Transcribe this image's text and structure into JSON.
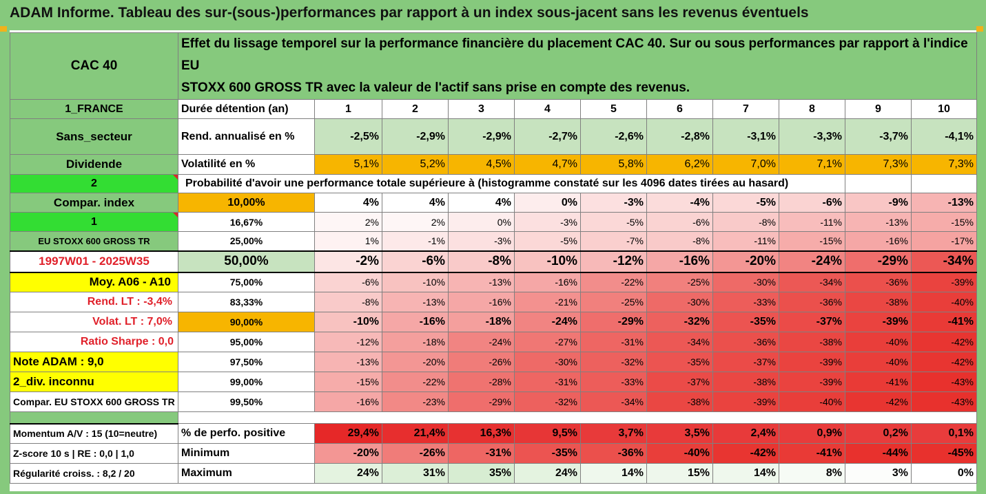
{
  "title": "ADAM Informe. Tableau des sur-(sous-)performances par rapport à un index sous-jacent sans les revenus éventuels",
  "header": {
    "asset": "CAC 40",
    "description_line1": "Effet du lissage temporel sur la performance financière du placement CAC 40. Sur ou sous performances par rapport à l'indice EU",
    "description_line2": "STOXX 600 GROSS TR avec la valeur de l'actif sans prise en compte des revenus."
  },
  "left_labels": {
    "country": "1_FRANCE",
    "sector": "Sans_secteur",
    "dividend": "Dividende",
    "two": "2",
    "compar_index": "Compar. index",
    "one": "1",
    "index_name": "EU STOXX 600 GROSS TR",
    "period": "1997W01 - 2025W35",
    "moy": "Moy. A06 - A10",
    "rend_lt": "Rend. LT :   -3,4%",
    "volat_lt": "Volat. LT :   7,0%",
    "sharpe": "Ratio Sharpe :   0,0",
    "note": "Note ADAM : 9,0",
    "div": "2_div. inconnu",
    "compar_full": "Compar. EU STOXX 600 GROSS TR",
    "momentum": "Momentum A/V : 15 (10=neutre)",
    "zscore": "Z-score 10 s  | RE : 0,0 | 1,0",
    "regularite": "Régularité croiss. : 8,2 / 20"
  },
  "row_labels": {
    "duree": "Durée détention (an)",
    "rend": "Rend. annualisé en %",
    "vol": "Volatilité en %",
    "proba": "Probabilité d'avoir une performance totale supérieure à (histogramme constaté sur les 4096 dates tirées au hasard)",
    "perf_pos": "% de perfo. positive",
    "minimum": "Minimum",
    "maximum": "Maximum"
  },
  "years": [
    "1",
    "2",
    "3",
    "4",
    "5",
    "6",
    "7",
    "8",
    "9",
    "10"
  ],
  "rend": [
    "-2,5%",
    "-2,9%",
    "-2,9%",
    "-2,7%",
    "-2,6%",
    "-2,8%",
    "-3,1%",
    "-3,3%",
    "-3,7%",
    "-4,1%"
  ],
  "vol": [
    "5,1%",
    "5,2%",
    "4,5%",
    "4,7%",
    "5,8%",
    "6,2%",
    "7,0%",
    "7,1%",
    "7,3%",
    "7,3%"
  ],
  "percentiles": [
    {
      "p": "10,00%",
      "values": [
        "4%",
        "4%",
        "4%",
        "0%",
        "-3%",
        "-4%",
        "-5%",
        "-6%",
        "-9%",
        "-13%"
      ]
    },
    {
      "p": "16,67%",
      "values": [
        "2%",
        "2%",
        "0%",
        "-3%",
        "-5%",
        "-6%",
        "-8%",
        "-11%",
        "-13%",
        "-15%"
      ]
    },
    {
      "p": "25,00%",
      "values": [
        "1%",
        "-1%",
        "-3%",
        "-5%",
        "-7%",
        "-8%",
        "-11%",
        "-15%",
        "-16%",
        "-17%"
      ]
    },
    {
      "p": "50,00%",
      "values": [
        "-2%",
        "-6%",
        "-8%",
        "-10%",
        "-12%",
        "-16%",
        "-20%",
        "-24%",
        "-29%",
        "-34%"
      ]
    },
    {
      "p": "75,00%",
      "values": [
        "-6%",
        "-10%",
        "-13%",
        "-16%",
        "-22%",
        "-25%",
        "-30%",
        "-34%",
        "-36%",
        "-39%"
      ]
    },
    {
      "p": "83,33%",
      "values": [
        "-8%",
        "-13%",
        "-16%",
        "-21%",
        "-25%",
        "-30%",
        "-33%",
        "-36%",
        "-38%",
        "-40%"
      ]
    },
    {
      "p": "90,00%",
      "values": [
        "-10%",
        "-16%",
        "-18%",
        "-24%",
        "-29%",
        "-32%",
        "-35%",
        "-37%",
        "-39%",
        "-41%"
      ]
    },
    {
      "p": "95,00%",
      "values": [
        "-12%",
        "-18%",
        "-24%",
        "-27%",
        "-31%",
        "-34%",
        "-36%",
        "-38%",
        "-40%",
        "-42%"
      ]
    },
    {
      "p": "97,50%",
      "values": [
        "-13%",
        "-20%",
        "-26%",
        "-30%",
        "-32%",
        "-35%",
        "-37%",
        "-39%",
        "-40%",
        "-42%"
      ]
    },
    {
      "p": "99,00%",
      "values": [
        "-15%",
        "-22%",
        "-28%",
        "-31%",
        "-33%",
        "-37%",
        "-38%",
        "-39%",
        "-41%",
        "-43%"
      ]
    },
    {
      "p": "99,50%",
      "values": [
        "-16%",
        "-23%",
        "-29%",
        "-32%",
        "-34%",
        "-38%",
        "-39%",
        "-40%",
        "-42%",
        "-43%"
      ]
    }
  ],
  "perf_pos": [
    "29,4%",
    "21,4%",
    "16,3%",
    "9,5%",
    "3,7%",
    "3,5%",
    "2,4%",
    "0,9%",
    "0,2%",
    "0,1%"
  ],
  "minimum": [
    "-20%",
    "-26%",
    "-31%",
    "-35%",
    "-36%",
    "-40%",
    "-42%",
    "-41%",
    "-44%",
    "-45%"
  ],
  "maximum": [
    "24%",
    "31%",
    "35%",
    "24%",
    "14%",
    "15%",
    "14%",
    "8%",
    "3%",
    "0%"
  ],
  "colors": {
    "header_green": "#86c97d",
    "bright_green": "#33dd33",
    "yellow": "#ffff00",
    "orange": "#f7b500",
    "red_strong": "#e8302e",
    "red_label": "#e0202a"
  }
}
